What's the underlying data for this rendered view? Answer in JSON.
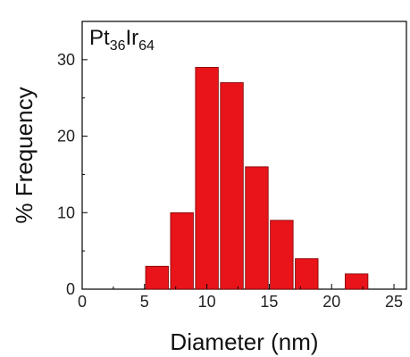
{
  "chart_data": {
    "type": "bar",
    "title": {
      "parts": [
        {
          "text": "Pt",
          "sub": false
        },
        {
          "text": "36",
          "sub": true
        },
        {
          "text": "Ir",
          "sub": false
        },
        {
          "text": "64",
          "sub": true
        }
      ]
    },
    "xlabel": "Diameter (nm)",
    "ylabel": "% Frequency",
    "xlim": [
      0,
      26
    ],
    "ylim": [
      0,
      35
    ],
    "x_ticks": [
      0,
      5,
      10,
      15,
      20,
      25
    ],
    "y_ticks": [
      0,
      10,
      20,
      30
    ],
    "bin_width": 2,
    "bins": [
      {
        "x": 6,
        "value": 3
      },
      {
        "x": 8,
        "value": 10
      },
      {
        "x": 10,
        "value": 29
      },
      {
        "x": 12,
        "value": 27
      },
      {
        "x": 14,
        "value": 16
      },
      {
        "x": 16,
        "value": 9
      },
      {
        "x": 18,
        "value": 4
      },
      {
        "x": 22,
        "value": 2
      }
    ],
    "bar_color": "#e8141a",
    "bar_edge_color": "#7a0000",
    "grid": false,
    "legend": false
  }
}
